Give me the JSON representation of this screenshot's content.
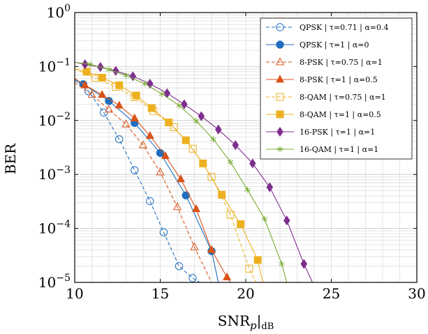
{
  "chart_data": {
    "type": "line",
    "xlabel": "SNR",
    "xlabel_sub": "p",
    "xlabel_suffix": "dB",
    "ylabel": "BER",
    "xlim": [
      10,
      30
    ],
    "ylim": [
      1e-05,
      1
    ],
    "yscale": "log",
    "grid": true,
    "legend_position": "top-right",
    "x_ticks": [
      10,
      15,
      20,
      25,
      30
    ],
    "y_tick_exponents": [
      0,
      -1,
      -2,
      -3,
      -4,
      -5
    ],
    "series": [
      {
        "name": "QPSK | τ=0.71 | α=0.4",
        "color": "#1f6fbf",
        "dash": true,
        "marker": "circle-open",
        "x": [
          10,
          10.8,
          11.7,
          12.6,
          13.5,
          14.4,
          15.2,
          16.1,
          16.9,
          17.3
        ],
        "y": [
          0.06,
          0.035,
          0.014,
          0.0045,
          0.0012,
          0.00032,
          8.5e-05,
          2e-05,
          1.2e-05,
          1e-05
        ]
      },
      {
        "name": "QPSK | τ=1 | α=0",
        "color": "#1f6fbf",
        "dash": false,
        "marker": "circle-filled",
        "x": [
          10,
          10.5,
          12.0,
          13.5,
          15.0,
          16.5,
          18.0,
          18.4
        ],
        "y": [
          0.055,
          0.047,
          0.023,
          0.009,
          0.0025,
          0.00041,
          3.8e-05,
          1e-05
        ]
      },
      {
        "name": "8-PSK | τ=0.75 | α=1",
        "color": "#d95319",
        "dash": true,
        "marker": "triangle-open",
        "x": [
          10,
          11.0,
          12.0,
          13.0,
          14.0,
          15.0,
          16.0,
          17.0,
          18.0
        ],
        "y": [
          0.05,
          0.03,
          0.016,
          0.0085,
          0.0035,
          0.0011,
          0.00025,
          4.5e-05,
          1e-05
        ]
      },
      {
        "name": "8-PSK | τ=1 | α=0.5",
        "color": "#d95319",
        "dash": false,
        "marker": "triangle-filled",
        "x": [
          10,
          10.6,
          11.6,
          12.6,
          13.5,
          14.4,
          15.3,
          16.2,
          17.1,
          18.0,
          18.9,
          19.1
        ],
        "y": [
          0.06,
          0.045,
          0.03,
          0.019,
          0.011,
          0.0052,
          0.0022,
          0.00082,
          0.00023,
          4e-05,
          1.25e-05,
          1e-05
        ]
      },
      {
        "name": "8-QAM | τ=0.75 | α=1",
        "color": "#edb120",
        "dash": true,
        "marker": "square-open",
        "x": [
          10,
          11.2,
          12.4,
          13.5,
          14.6,
          15.8,
          16.9,
          18.0,
          19.1,
          20.2,
          20.6
        ],
        "y": [
          0.09,
          0.062,
          0.042,
          0.027,
          0.015,
          0.0075,
          0.003,
          0.0009,
          0.00018,
          1.8e-05,
          1e-05
        ]
      },
      {
        "name": "8-QAM | τ=1 | α=0.5",
        "color": "#edb120",
        "dash": false,
        "marker": "square-filled",
        "x": [
          10,
          10.7,
          11.6,
          12.6,
          13.6,
          14.5,
          15.5,
          16.5,
          17.5,
          18.6,
          19.7,
          20.7,
          21.0
        ],
        "y": [
          0.09,
          0.08,
          0.062,
          0.045,
          0.029,
          0.017,
          0.0092,
          0.0043,
          0.0016,
          0.00042,
          0.00012,
          2.6e-05,
          1e-05
        ]
      },
      {
        "name": "16-PSK | τ=1 | α=1",
        "color": "#7e2f8e",
        "dash": false,
        "marker": "diamond-filled",
        "x": [
          10,
          10.6,
          11.5,
          12.4,
          13.4,
          14.4,
          15.4,
          16.4,
          17.4,
          18.4,
          19.4,
          20.4,
          21.4,
          22.4,
          23.4,
          23.9
        ],
        "y": [
          0.12,
          0.11,
          0.098,
          0.083,
          0.066,
          0.048,
          0.032,
          0.02,
          0.012,
          0.0068,
          0.0035,
          0.0016,
          0.00058,
          0.00014,
          2.2e-05,
          1e-05
        ]
      },
      {
        "name": "16-QAM | τ=1 | α=1",
        "color": "#77ac30",
        "dash": false,
        "marker": "star",
        "x": [
          10,
          10.9,
          12.0,
          13.0,
          14.1,
          15.1,
          16.1,
          17.1,
          18.1,
          19.1,
          20.1,
          21.1,
          22.1,
          22.4
        ],
        "y": [
          0.12,
          0.11,
          0.088,
          0.068,
          0.048,
          0.031,
          0.019,
          0.0098,
          0.0045,
          0.0017,
          0.00052,
          0.00015,
          2.2e-05,
          1e-05
        ]
      }
    ]
  }
}
